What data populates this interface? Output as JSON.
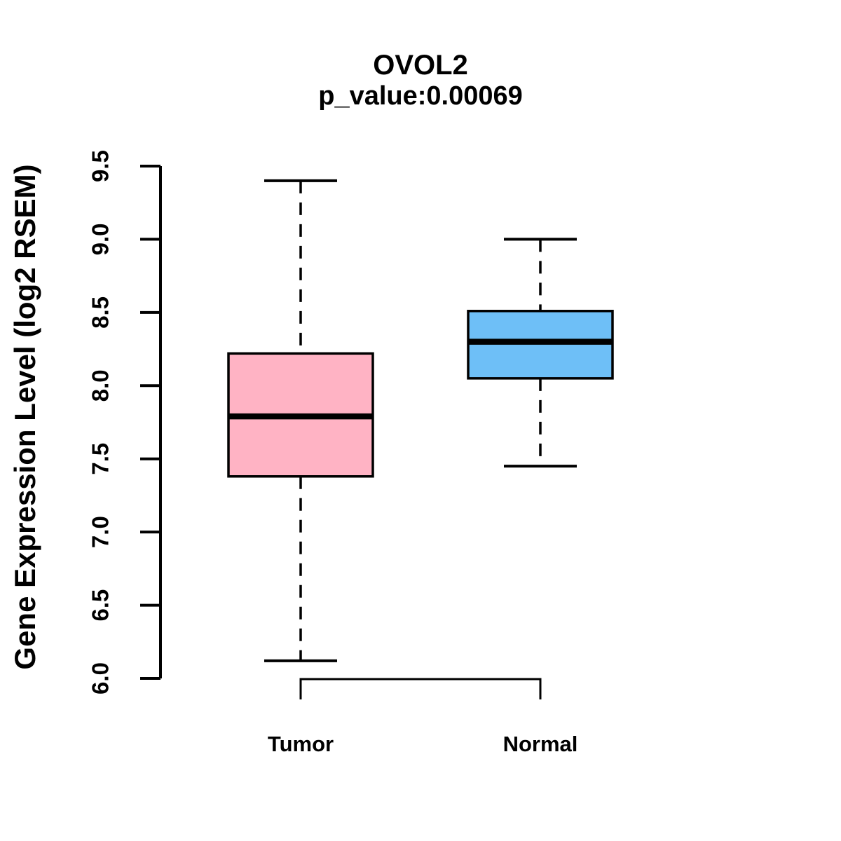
{
  "figure": {
    "background_color": "#ffffff",
    "text_color": "#000000"
  },
  "chart_data": {
    "type": "boxplot",
    "title": "OVOL2",
    "subtitle": "p_value:0.00069",
    "xlabel": "",
    "ylabel": "Gene Expression Level (log2 RSEM)",
    "ylim": [
      6.0,
      9.5
    ],
    "yticks": [
      6.0,
      6.5,
      7.0,
      7.5,
      8.0,
      8.5,
      9.0,
      9.5
    ],
    "grid": false,
    "legend": "none",
    "categories": [
      "Tumor",
      "Normal"
    ],
    "groups": [
      {
        "label": "Tumor",
        "color": "#FFB3C4",
        "stats": {
          "whisker_low": 6.12,
          "q1": 7.38,
          "median": 7.79,
          "q3": 8.22,
          "whisker_high": 9.4
        }
      },
      {
        "label": "Normal",
        "color": "#6EBFF7",
        "stats": {
          "whisker_low": 7.45,
          "q1": 8.05,
          "median": 8.3,
          "q3": 8.51,
          "whisker_high": 9.0
        }
      }
    ],
    "box_border_color": "#000000",
    "median_color": "#000000",
    "whisker_style": "dashed"
  }
}
